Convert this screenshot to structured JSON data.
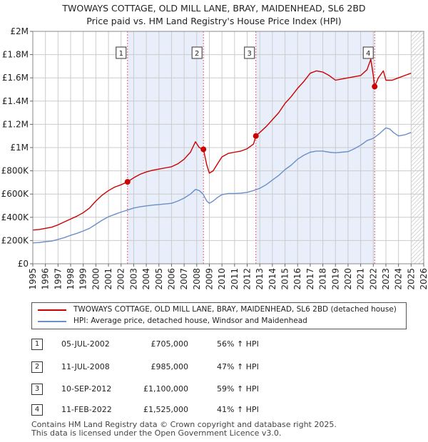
{
  "header": {
    "title_line1": "TWOWAYS COTTAGE, OLD MILL LANE, BRAY, MAIDENHEAD, SL6 2BD",
    "title_line2": "Price paid vs. HM Land Registry's House Price Index (HPI)"
  },
  "colors": {
    "property": "#cc0000",
    "hpi": "#6a8fc8",
    "shade": "#e8eefa",
    "marker_line": "#e06070",
    "grid": "#cccccc"
  },
  "chart_data": {
    "type": "line",
    "x_range": [
      1995,
      2026
    ],
    "ylim": [
      0,
      2000000
    ],
    "y_ticks": [
      {
        "v": 0,
        "label": "£0"
      },
      {
        "v": 200000,
        "label": "£200K"
      },
      {
        "v": 400000,
        "label": "£400K"
      },
      {
        "v": 600000,
        "label": "£600K"
      },
      {
        "v": 800000,
        "label": "£800K"
      },
      {
        "v": 1000000,
        "label": "£1M"
      },
      {
        "v": 1200000,
        "label": "£1.2M"
      },
      {
        "v": 1400000,
        "label": "£1.4M"
      },
      {
        "v": 1600000,
        "label": "£1.6M"
      },
      {
        "v": 1800000,
        "label": "£1.8M"
      },
      {
        "v": 2000000,
        "label": "£2M"
      }
    ],
    "x_ticks": [
      "1995",
      "1996",
      "1997",
      "1998",
      "1999",
      "2000",
      "2001",
      "2002",
      "2003",
      "2004",
      "2005",
      "2006",
      "2007",
      "2008",
      "2009",
      "2010",
      "2011",
      "2012",
      "2013",
      "2014",
      "2015",
      "2016",
      "2017",
      "2018",
      "2019",
      "2020",
      "2021",
      "2022",
      "2023",
      "2024",
      "2025",
      "2026"
    ],
    "shaded_ranges": [
      [
        2002.51,
        2008.53
      ],
      [
        2012.69,
        2022.11
      ]
    ],
    "hatch_from": 2025.0,
    "series": [
      {
        "name": "TWOWAYS COTTAGE, OLD MILL LANE, BRAY, MAIDENHEAD, SL6 2BD (detached house)",
        "x": [
          1995.0,
          1995.5,
          1996.0,
          1996.5,
          1997.0,
          1997.5,
          1998.0,
          1998.5,
          1999.0,
          1999.5,
          2000.0,
          2000.5,
          2001.0,
          2001.5,
          2002.0,
          2002.51,
          2003.0,
          2003.5,
          2004.0,
          2004.5,
          2005.0,
          2005.5,
          2006.0,
          2006.5,
          2007.0,
          2007.5,
          2007.9,
          2008.2,
          2008.53,
          2008.8,
          2009.0,
          2009.3,
          2009.7,
          2010.0,
          2010.5,
          2011.0,
          2011.5,
          2012.0,
          2012.5,
          2012.69,
          2013.0,
          2013.5,
          2014.0,
          2014.5,
          2015.0,
          2015.5,
          2016.0,
          2016.5,
          2017.0,
          2017.5,
          2018.0,
          2018.5,
          2019.0,
          2019.5,
          2020.0,
          2020.5,
          2021.0,
          2021.5,
          2021.8,
          2022.0,
          2022.11,
          2022.4,
          2022.8,
          2023.0,
          2023.5,
          2024.0,
          2024.5,
          2025.0
        ],
        "values": [
          290000,
          295000,
          305000,
          315000,
          335000,
          360000,
          385000,
          410000,
          440000,
          480000,
          540000,
          590000,
          630000,
          660000,
          680000,
          705000,
          740000,
          770000,
          790000,
          805000,
          815000,
          825000,
          835000,
          860000,
          900000,
          960000,
          1050000,
          1000000,
          985000,
          850000,
          780000,
          800000,
          870000,
          920000,
          950000,
          960000,
          970000,
          990000,
          1030000,
          1100000,
          1130000,
          1180000,
          1240000,
          1300000,
          1380000,
          1440000,
          1510000,
          1570000,
          1640000,
          1660000,
          1650000,
          1620000,
          1580000,
          1590000,
          1600000,
          1610000,
          1620000,
          1670000,
          1760000,
          1620000,
          1525000,
          1600000,
          1660000,
          1580000,
          1580000,
          1600000,
          1620000,
          1640000
        ]
      },
      {
        "name": "HPI: Average price, detached house, Windsor and Maidenhead",
        "x": [
          1995.0,
          1995.5,
          1996.0,
          1996.5,
          1997.0,
          1997.5,
          1998.0,
          1998.5,
          1999.0,
          1999.5,
          2000.0,
          2000.5,
          2001.0,
          2001.5,
          2002.0,
          2002.5,
          2003.0,
          2003.5,
          2004.0,
          2004.5,
          2005.0,
          2005.5,
          2006.0,
          2006.5,
          2007.0,
          2007.5,
          2007.9,
          2008.2,
          2008.5,
          2008.8,
          2009.0,
          2009.3,
          2009.7,
          2010.0,
          2010.5,
          2011.0,
          2011.5,
          2012.0,
          2012.5,
          2013.0,
          2013.5,
          2014.0,
          2014.5,
          2015.0,
          2015.5,
          2016.0,
          2016.5,
          2017.0,
          2017.5,
          2018.0,
          2018.5,
          2019.0,
          2019.5,
          2020.0,
          2020.5,
          2021.0,
          2021.5,
          2022.0,
          2022.5,
          2023.0,
          2023.3,
          2023.6,
          2024.0,
          2024.5,
          2025.0
        ],
        "values": [
          180000,
          183000,
          190000,
          195000,
          210000,
          225000,
          245000,
          262000,
          282000,
          305000,
          340000,
          375000,
          405000,
          425000,
          445000,
          462000,
          480000,
          490000,
          498000,
          505000,
          510000,
          515000,
          520000,
          540000,
          565000,
          600000,
          640000,
          630000,
          600000,
          540000,
          520000,
          540000,
          575000,
          595000,
          605000,
          605000,
          608000,
          615000,
          630000,
          650000,
          680000,
          720000,
          760000,
          810000,
          850000,
          900000,
          935000,
          960000,
          970000,
          970000,
          960000,
          955000,
          960000,
          965000,
          990000,
          1020000,
          1060000,
          1080000,
          1120000,
          1170000,
          1160000,
          1130000,
          1100000,
          1110000,
          1130000
        ]
      }
    ],
    "transactions": [
      {
        "id": "1",
        "date": "05-JUL-2002",
        "price": "£705,000",
        "hpi": "56% ↑ HPI",
        "x": 2002.51,
        "value": 705000
      },
      {
        "id": "2",
        "date": "11-JUL-2008",
        "price": "£985,000",
        "hpi": "47% ↑ HPI",
        "x": 2008.53,
        "value": 985000
      },
      {
        "id": "3",
        "date": "10-SEP-2012",
        "price": "£1,100,000",
        "hpi": "59% ↑ HPI",
        "x": 2012.69,
        "value": 1100000
      },
      {
        "id": "4",
        "date": "11-FEB-2022",
        "price": "£1,525,000",
        "hpi": "41% ↑ HPI",
        "x": 2022.11,
        "value": 1525000
      }
    ]
  },
  "legend": {
    "property_label": "TWOWAYS COTTAGE, OLD MILL LANE, BRAY, MAIDENHEAD, SL6 2BD (detached house)",
    "hpi_label": "HPI: Average price, detached house, Windsor and Maidenhead"
  },
  "footer": {
    "line1": "Contains HM Land Registry data © Crown copyright and database right 2025.",
    "line2": "This data is licensed under the Open Government Licence v3.0."
  }
}
